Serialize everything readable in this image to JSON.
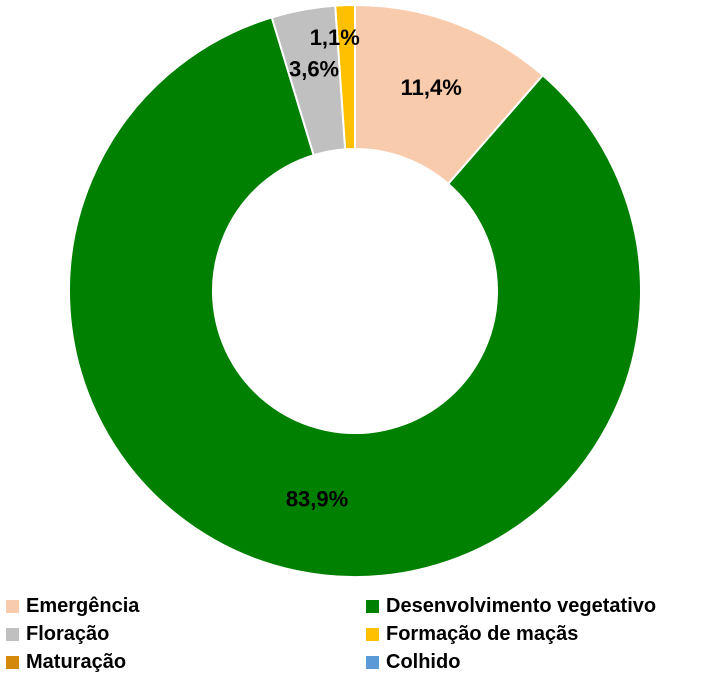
{
  "chart_data": {
    "type": "pie",
    "variant": "donut",
    "title": "",
    "categories": [
      "Emergência",
      "Desenvolvimento vegetativo",
      "Floração",
      "Formação de maçãs",
      "Maturação",
      "Colhido"
    ],
    "values": [
      11.4,
      83.9,
      3.6,
      1.1,
      0,
      0
    ],
    "labels": [
      "11,4%",
      "83,9%",
      "3,6%",
      "1,1%",
      "",
      ""
    ],
    "colors": [
      "#f8cbad",
      "#008000",
      "#c0c0c0",
      "#ffc000",
      "#d4890a",
      "#5b9bd5"
    ],
    "legend_position": "bottom",
    "unit": "%"
  }
}
